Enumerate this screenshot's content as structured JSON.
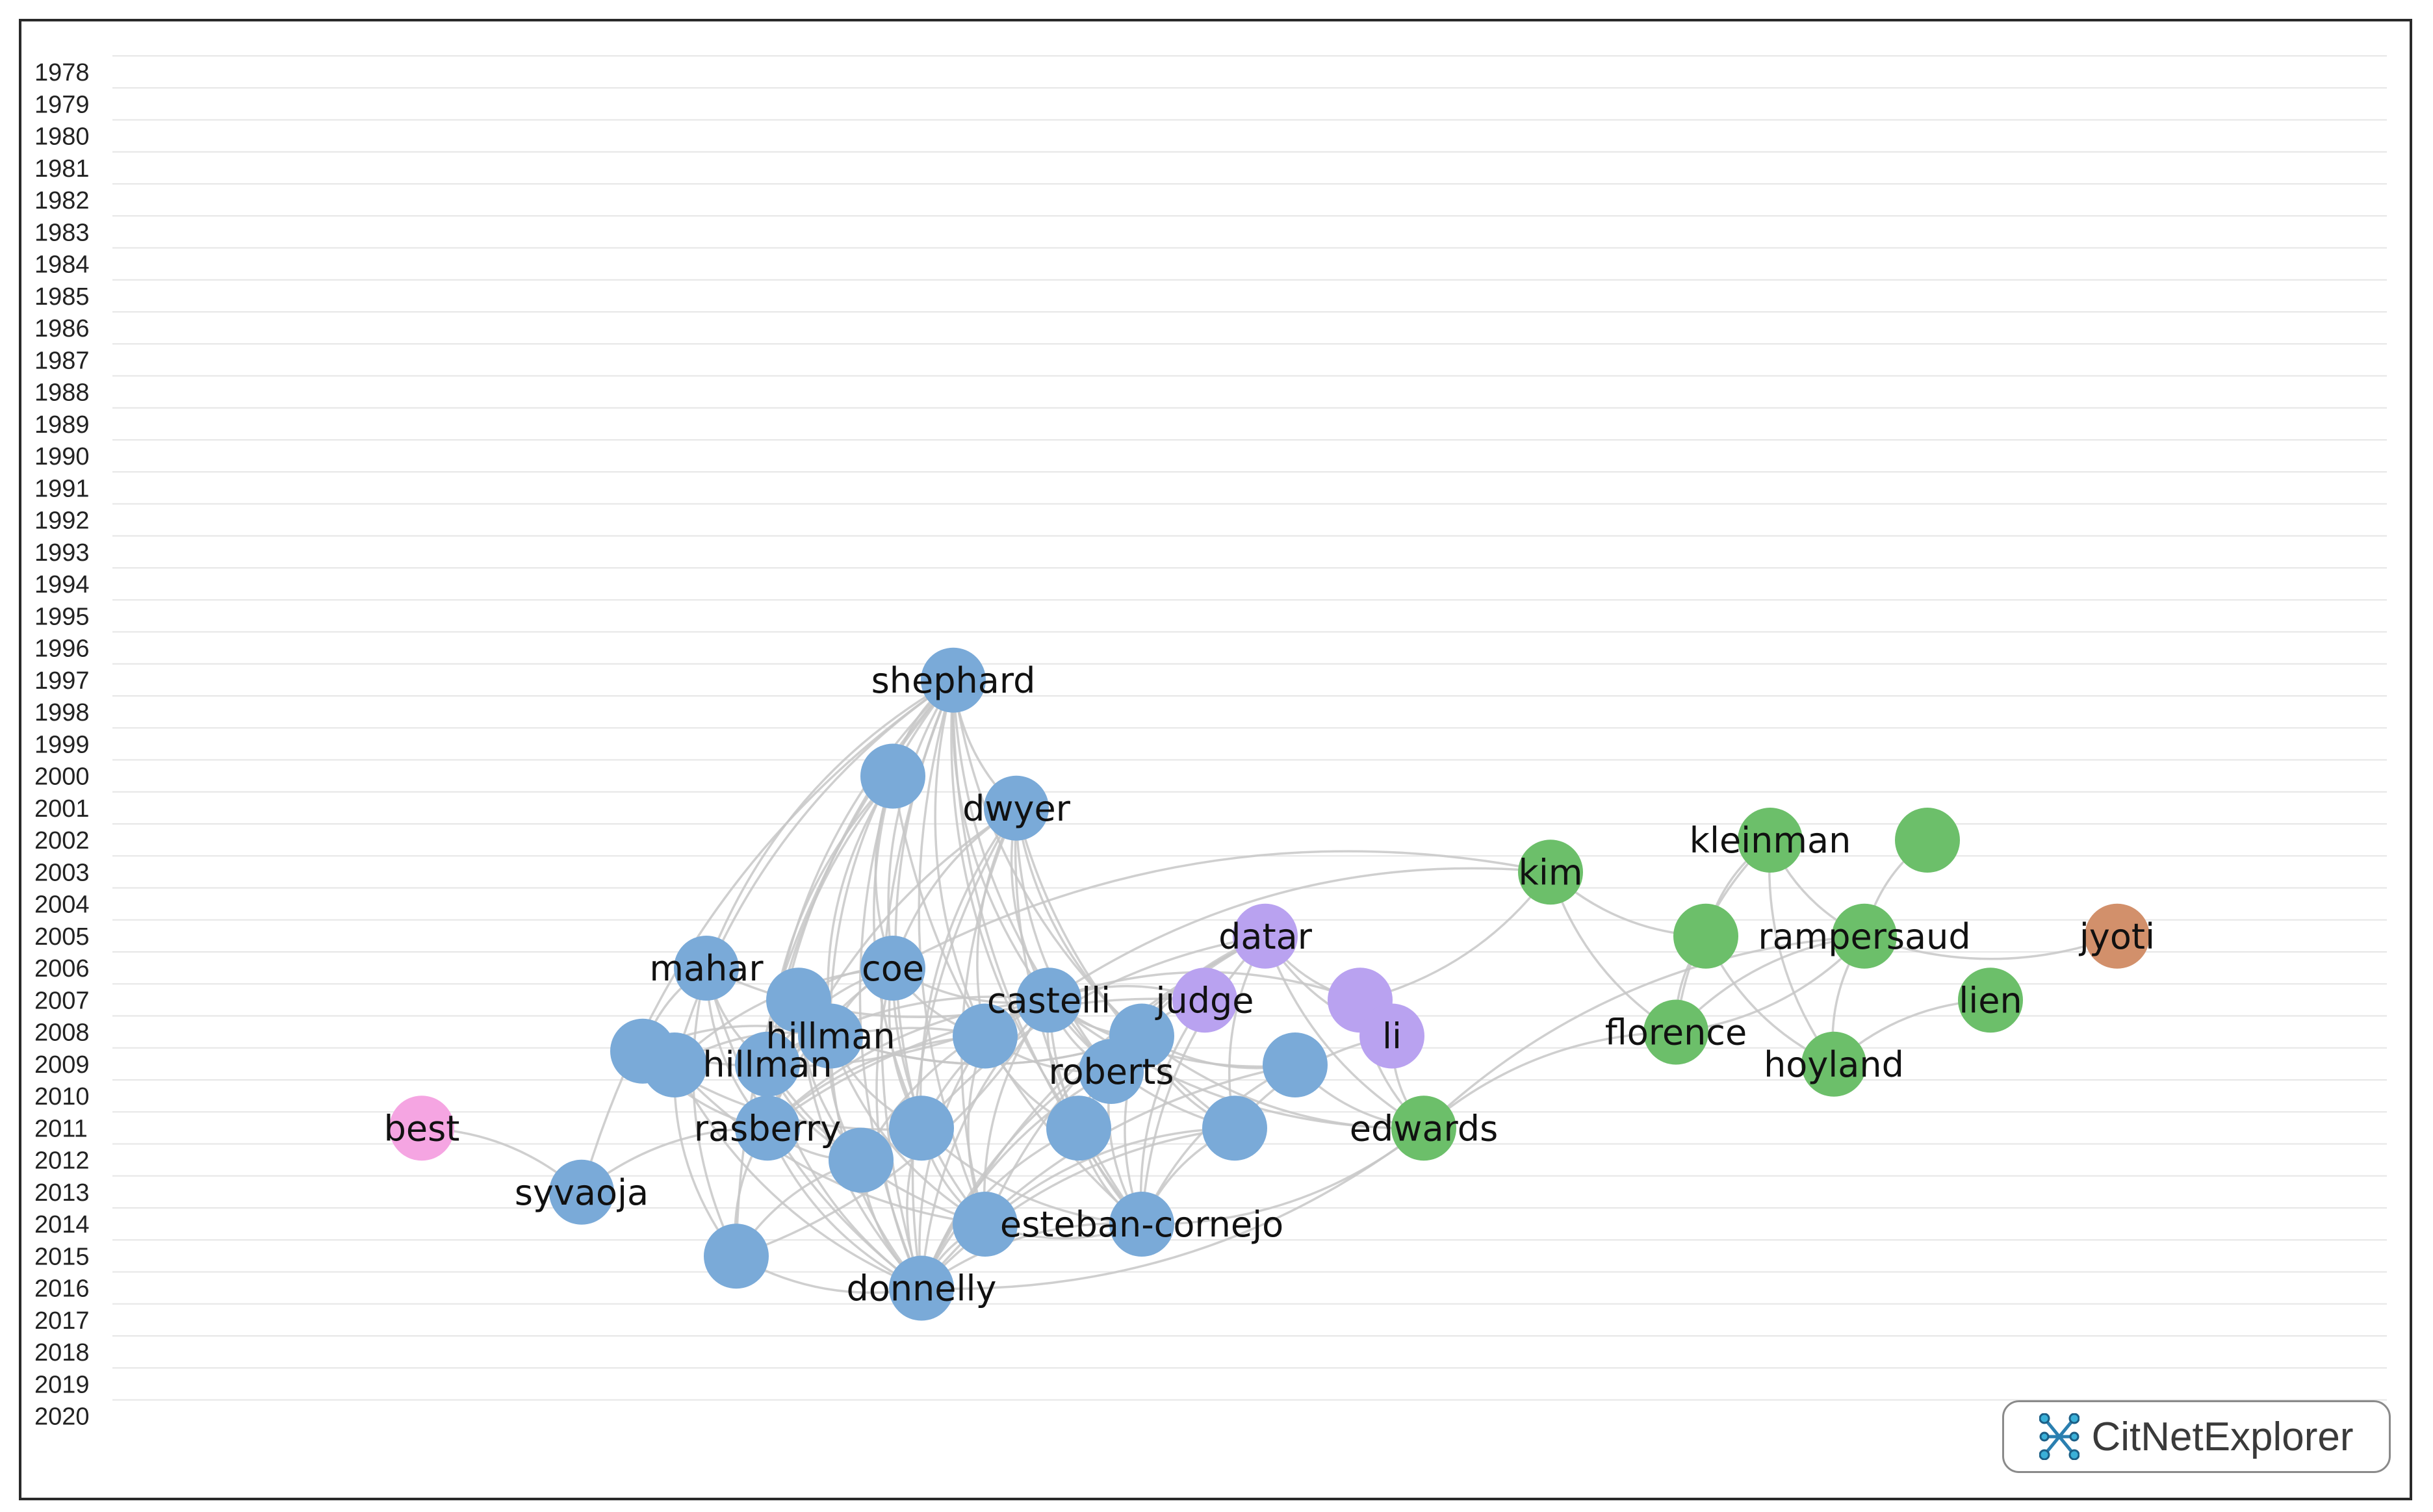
{
  "app": {
    "brand": "CitNetExplorer",
    "brand_icon": "network-logo-icon"
  },
  "colors": {
    "cluster_blue": "#7aaad8",
    "cluster_green": "#6cbf6a",
    "cluster_purple": "#b9a2f0",
    "cluster_orange": "#d2906b",
    "cluster_pink": "#f5a5e2",
    "edge": "#c7c7c7",
    "gridline": "#e6e6e6"
  },
  "years": [
    "1978",
    "1979",
    "1980",
    "1981",
    "1982",
    "1983",
    "1984",
    "1985",
    "1986",
    "1987",
    "1988",
    "1989",
    "1990",
    "1991",
    "1992",
    "1993",
    "1994",
    "1995",
    "1996",
    "1997",
    "1998",
    "1999",
    "2000",
    "2001",
    "2002",
    "2003",
    "2004",
    "2005",
    "2006",
    "2007",
    "2008",
    "2009",
    "2010",
    "2011",
    "2012",
    "2013",
    "2014",
    "2015",
    "2016",
    "2017",
    "2018",
    "2019",
    "2020"
  ],
  "nodes": [
    {
      "id": "n1",
      "label": "shephard",
      "year": 1997,
      "cluster": "blue"
    },
    {
      "id": "n2",
      "label": "",
      "year": 2000,
      "cluster": "blue"
    },
    {
      "id": "n3",
      "label": "dwyer",
      "year": 2001,
      "cluster": "blue"
    },
    {
      "id": "n4",
      "label": "mahar",
      "year": 2006,
      "cluster": "blue"
    },
    {
      "id": "n5",
      "label": "coe",
      "year": 2006,
      "cluster": "blue"
    },
    {
      "id": "n6",
      "label": "",
      "year": 2007,
      "cluster": "blue"
    },
    {
      "id": "n7",
      "label": "castelli",
      "year": 2007,
      "cluster": "blue"
    },
    {
      "id": "n8",
      "label": "hillman",
      "year": 2008,
      "cluster": "blue"
    },
    {
      "id": "n9",
      "label": "",
      "year": 2008,
      "cluster": "blue"
    },
    {
      "id": "n10",
      "label": "",
      "year": 2008,
      "cluster": "blue"
    },
    {
      "id": "n11",
      "label": "",
      "year": 2009,
      "cluster": "blue"
    },
    {
      "id": "n12",
      "label": "hillman",
      "year": 2009,
      "cluster": "blue"
    },
    {
      "id": "n13",
      "label": "",
      "year": 2010,
      "cluster": "blue"
    },
    {
      "id": "n14",
      "label": "roberts",
      "year": 2010,
      "cluster": "blue"
    },
    {
      "id": "n15",
      "label": "",
      "year": 2010,
      "cluster": "blue"
    },
    {
      "id": "n16",
      "label": "rasberry",
      "year": 2011,
      "cluster": "blue"
    },
    {
      "id": "n17",
      "label": "",
      "year": 2011,
      "cluster": "blue"
    },
    {
      "id": "n18",
      "label": "",
      "year": 2011,
      "cluster": "blue"
    },
    {
      "id": "n19",
      "label": "",
      "year": 2011,
      "cluster": "blue"
    },
    {
      "id": "n20",
      "label": "",
      "year": 2012,
      "cluster": "blue"
    },
    {
      "id": "n21",
      "label": "syvaoja",
      "year": 2013,
      "cluster": "blue"
    },
    {
      "id": "n22",
      "label": "",
      "year": 2014,
      "cluster": "blue"
    },
    {
      "id": "n23",
      "label": "esteban-cornejo",
      "year": 2014,
      "cluster": "blue"
    },
    {
      "id": "n24",
      "label": "",
      "year": 2015,
      "cluster": "blue"
    },
    {
      "id": "n25",
      "label": "donnelly",
      "year": 2016,
      "cluster": "blue"
    },
    {
      "id": "n26",
      "label": "best",
      "year": 2011,
      "cluster": "pink"
    },
    {
      "id": "n27",
      "label": "datar",
      "year": 2005,
      "cluster": "purple"
    },
    {
      "id": "n28",
      "label": "judge",
      "year": 2007,
      "cluster": "purple"
    },
    {
      "id": "n29",
      "label": "",
      "year": 2007,
      "cluster": "purple"
    },
    {
      "id": "n30",
      "label": "li",
      "year": 2008,
      "cluster": "purple"
    },
    {
      "id": "n31",
      "label": "edwards",
      "year": 2011,
      "cluster": "green"
    },
    {
      "id": "n32",
      "label": "kim",
      "year": 2003,
      "cluster": "green"
    },
    {
      "id": "n33",
      "label": "kleinman",
      "year": 2002,
      "cluster": "green"
    },
    {
      "id": "n34",
      "label": "",
      "year": 2002,
      "cluster": "green"
    },
    {
      "id": "n35",
      "label": "",
      "year": 2005,
      "cluster": "green"
    },
    {
      "id": "n36",
      "label": "rampersaud",
      "year": 2005,
      "cluster": "green"
    },
    {
      "id": "n37",
      "label": "florence",
      "year": 2008,
      "cluster": "green"
    },
    {
      "id": "n38",
      "label": "lien",
      "year": 2007,
      "cluster": "green"
    },
    {
      "id": "n39",
      "label": "hoyland",
      "year": 2009,
      "cluster": "green"
    },
    {
      "id": "n40",
      "label": "jyoti",
      "year": 2005,
      "cluster": "orange"
    }
  ],
  "edges": [
    [
      "n1",
      "n2"
    ],
    [
      "n1",
      "n3"
    ],
    [
      "n1",
      "n5"
    ],
    [
      "n1",
      "n7"
    ],
    [
      "n1",
      "n8"
    ],
    [
      "n1",
      "n9"
    ],
    [
      "n1",
      "n10"
    ],
    [
      "n1",
      "n12"
    ],
    [
      "n1",
      "n13"
    ],
    [
      "n1",
      "n14"
    ],
    [
      "n1",
      "n16"
    ],
    [
      "n1",
      "n17"
    ],
    [
      "n1",
      "n18"
    ],
    [
      "n1",
      "n22"
    ],
    [
      "n1",
      "n23"
    ],
    [
      "n1",
      "n24"
    ],
    [
      "n1",
      "n25"
    ],
    [
      "n1",
      "n4"
    ],
    [
      "n2",
      "n5"
    ],
    [
      "n2",
      "n8"
    ],
    [
      "n2",
      "n12"
    ],
    [
      "n2",
      "n16"
    ],
    [
      "n2",
      "n17"
    ],
    [
      "n2",
      "n25"
    ],
    [
      "n2",
      "n23"
    ],
    [
      "n3",
      "n5"
    ],
    [
      "n3",
      "n7"
    ],
    [
      "n3",
      "n9"
    ],
    [
      "n3",
      "n10"
    ],
    [
      "n3",
      "n16"
    ],
    [
      "n3",
      "n17"
    ],
    [
      "n3",
      "n19"
    ],
    [
      "n3",
      "n22"
    ],
    [
      "n3",
      "n23"
    ],
    [
      "n3",
      "n25"
    ],
    [
      "n3",
      "n14"
    ],
    [
      "n4",
      "n11"
    ],
    [
      "n4",
      "n12"
    ],
    [
      "n4",
      "n16"
    ],
    [
      "n4",
      "n25"
    ],
    [
      "n4",
      "n24"
    ],
    [
      "n4",
      "n7"
    ],
    [
      "n5",
      "n8"
    ],
    [
      "n5",
      "n9"
    ],
    [
      "n5",
      "n12"
    ],
    [
      "n5",
      "n13"
    ],
    [
      "n5",
      "n16"
    ],
    [
      "n5",
      "n17"
    ],
    [
      "n5",
      "n22"
    ],
    [
      "n5",
      "n25"
    ],
    [
      "n5",
      "n7"
    ],
    [
      "n5",
      "n6"
    ],
    [
      "n6",
      "n8"
    ],
    [
      "n6",
      "n16"
    ],
    [
      "n6",
      "n20"
    ],
    [
      "n6",
      "n25"
    ],
    [
      "n7",
      "n9"
    ],
    [
      "n7",
      "n10"
    ],
    [
      "n7",
      "n12"
    ],
    [
      "n7",
      "n14"
    ],
    [
      "n7",
      "n15"
    ],
    [
      "n7",
      "n16"
    ],
    [
      "n7",
      "n17"
    ],
    [
      "n7",
      "n18"
    ],
    [
      "n7",
      "n19"
    ],
    [
      "n7",
      "n20"
    ],
    [
      "n7",
      "n22"
    ],
    [
      "n7",
      "n23"
    ],
    [
      "n7",
      "n25"
    ],
    [
      "n7",
      "n31"
    ],
    [
      "n8",
      "n10"
    ],
    [
      "n8",
      "n11"
    ],
    [
      "n8",
      "n12"
    ],
    [
      "n8",
      "n13"
    ],
    [
      "n8",
      "n16"
    ],
    [
      "n8",
      "n17"
    ],
    [
      "n8",
      "n20"
    ],
    [
      "n8",
      "n22"
    ],
    [
      "n8",
      "n25"
    ],
    [
      "n8",
      "n10"
    ],
    [
      "n9",
      "n12"
    ],
    [
      "n9",
      "n16"
    ],
    [
      "n9",
      "n22"
    ],
    [
      "n9",
      "n25"
    ],
    [
      "n9",
      "n14"
    ],
    [
      "n9",
      "n18"
    ],
    [
      "n10",
      "n14"
    ],
    [
      "n10",
      "n15"
    ],
    [
      "n10",
      "n19"
    ],
    [
      "n10",
      "n23"
    ],
    [
      "n10",
      "n25"
    ],
    [
      "n10",
      "n31"
    ],
    [
      "n11",
      "n16"
    ],
    [
      "n11",
      "n7"
    ],
    [
      "n11",
      "n13"
    ],
    [
      "n11",
      "n17"
    ],
    [
      "n12",
      "n16"
    ],
    [
      "n12",
      "n20"
    ],
    [
      "n12",
      "n25"
    ],
    [
      "n12",
      "n22"
    ],
    [
      "n13",
      "n24"
    ],
    [
      "n13",
      "n25"
    ],
    [
      "n13",
      "n22"
    ],
    [
      "n14",
      "n23"
    ],
    [
      "n14",
      "n25"
    ],
    [
      "n14",
      "n18"
    ],
    [
      "n15",
      "n23"
    ],
    [
      "n15",
      "n25"
    ],
    [
      "n15",
      "n31"
    ],
    [
      "n16",
      "n20"
    ],
    [
      "n16",
      "n24"
    ],
    [
      "n16",
      "n25"
    ],
    [
      "n16",
      "n21"
    ],
    [
      "n17",
      "n23"
    ],
    [
      "n17",
      "n25"
    ],
    [
      "n17",
      "n22"
    ],
    [
      "n18",
      "n23"
    ],
    [
      "n18",
      "n25"
    ],
    [
      "n19",
      "n25"
    ],
    [
      "n19",
      "n22"
    ],
    [
      "n19",
      "n23"
    ],
    [
      "n20",
      "n25"
    ],
    [
      "n20",
      "n24"
    ],
    [
      "n22",
      "n25"
    ],
    [
      "n22",
      "n23"
    ],
    [
      "n23",
      "n25"
    ],
    [
      "n23",
      "n31"
    ],
    [
      "n24",
      "n25"
    ],
    [
      "n24",
      "n7"
    ],
    [
      "n25",
      "n31"
    ],
    [
      "n27",
      "n17"
    ],
    [
      "n27",
      "n18"
    ],
    [
      "n27",
      "n22"
    ],
    [
      "n27",
      "n23"
    ],
    [
      "n27",
      "n19"
    ],
    [
      "n27",
      "n25"
    ],
    [
      "n27",
      "n14"
    ],
    [
      "n27",
      "n31"
    ],
    [
      "n27",
      "n29"
    ],
    [
      "n27",
      "n30"
    ],
    [
      "n28",
      "n7"
    ],
    [
      "n28",
      "n10"
    ],
    [
      "n28",
      "n16"
    ],
    [
      "n28",
      "n23"
    ],
    [
      "n29",
      "n7"
    ],
    [
      "n29",
      "n31"
    ],
    [
      "n29",
      "n32"
    ],
    [
      "n30",
      "n31"
    ],
    [
      "n30",
      "n19"
    ],
    [
      "n32",
      "n5"
    ],
    [
      "n32",
      "n35"
    ],
    [
      "n32",
      "n37"
    ],
    [
      "n32",
      "n7"
    ],
    [
      "n33",
      "n35"
    ],
    [
      "n33",
      "n37"
    ],
    [
      "n33",
      "n36"
    ],
    [
      "n33",
      "n39"
    ],
    [
      "n34",
      "n36"
    ],
    [
      "n35",
      "n37"
    ],
    [
      "n35",
      "n39"
    ],
    [
      "n36",
      "n37"
    ],
    [
      "n36",
      "n39"
    ],
    [
      "n36",
      "n31"
    ],
    [
      "n36",
      "n40"
    ],
    [
      "n37",
      "n31"
    ],
    [
      "n37",
      "n36"
    ],
    [
      "n38",
      "n39"
    ],
    [
      "n21",
      "n26"
    ],
    [
      "n1",
      "n21"
    ]
  ]
}
